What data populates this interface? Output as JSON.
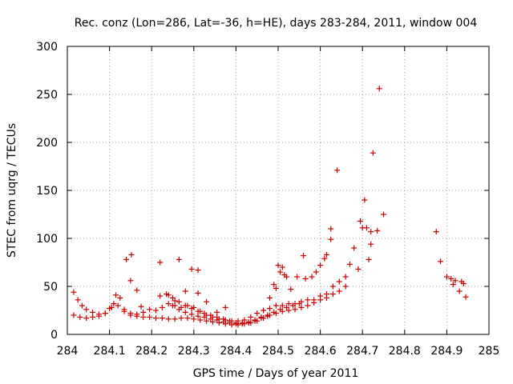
{
  "chart_data": {
    "type": "scatter",
    "title": "Rec. conz (Lon=286, Lat=-36, h=HE), days 283-284, 2011, window 004",
    "xlabel": "GPS time / Days of year 2011",
    "ylabel": "STEC from uqrg / TECUs",
    "xlim": [
      284,
      285
    ],
    "ylim": [
      0,
      300
    ],
    "xticks": [
      "284",
      "284.1",
      "284.2",
      "284.3",
      "284.4",
      "284.5",
      "284.6",
      "284.7",
      "284.8",
      "284.9",
      "285"
    ],
    "yticks": [
      "0",
      "50",
      "100",
      "150",
      "200",
      "250",
      "300"
    ],
    "grid": true,
    "marker": "+",
    "color": "#cc0000",
    "series": [
      {
        "points": [
          [
            284.015,
            44
          ],
          [
            284.025,
            36
          ],
          [
            284.035,
            30
          ],
          [
            284.045,
            26
          ],
          [
            284.06,
            23
          ],
          [
            284.075,
            21
          ],
          [
            284.09,
            22
          ],
          [
            284.1,
            27
          ],
          [
            284.11,
            32
          ],
          [
            284.115,
            41
          ],
          [
            284.125,
            38
          ],
          [
            284.135,
            26
          ],
          [
            284.15,
            22
          ],
          [
            284.165,
            21
          ],
          [
            284.18,
            23
          ],
          [
            284.195,
            26
          ],
          [
            284.21,
            25
          ],
          [
            284.225,
            28
          ],
          [
            284.24,
            32
          ],
          [
            284.255,
            30
          ],
          [
            284.27,
            28
          ],
          [
            284.285,
            30
          ],
          [
            284.3,
            28
          ],
          [
            284.315,
            24
          ],
          [
            284.33,
            20
          ],
          [
            284.345,
            18
          ],
          [
            284.36,
            16
          ],
          [
            284.375,
            15
          ],
          [
            284.39,
            14
          ],
          [
            284.405,
            14
          ],
          [
            284.42,
            15
          ],
          [
            284.435,
            18
          ],
          [
            284.45,
            22
          ],
          [
            284.465,
            25
          ],
          [
            284.48,
            27
          ],
          [
            284.495,
            30
          ],
          [
            284.51,
            30
          ],
          [
            284.525,
            32
          ],
          [
            284.54,
            32
          ],
          [
            284.555,
            34
          ],
          [
            284.57,
            36
          ],
          [
            284.585,
            36
          ],
          [
            284.6,
            40
          ],
          [
            284.615,
            42
          ],
          [
            284.63,
            50
          ],
          [
            284.645,
            55
          ],
          [
            284.66,
            60
          ],
          [
            284.015,
            20
          ],
          [
            284.03,
            18
          ],
          [
            284.045,
            17
          ],
          [
            284.06,
            18
          ],
          [
            284.075,
            19
          ],
          [
            284.09,
            22
          ],
          [
            284.105,
            28
          ],
          [
            284.12,
            30
          ],
          [
            284.135,
            24
          ],
          [
            284.15,
            20
          ],
          [
            284.165,
            19
          ],
          [
            284.18,
            18
          ],
          [
            284.195,
            18
          ],
          [
            284.21,
            17
          ],
          [
            284.225,
            17
          ],
          [
            284.24,
            16
          ],
          [
            284.255,
            16
          ],
          [
            284.27,
            17
          ],
          [
            284.285,
            17
          ],
          [
            284.3,
            16
          ],
          [
            284.315,
            15
          ],
          [
            284.33,
            14
          ],
          [
            284.345,
            13
          ],
          [
            284.36,
            12
          ],
          [
            284.375,
            11
          ],
          [
            284.39,
            10
          ],
          [
            284.405,
            10
          ],
          [
            284.42,
            11
          ],
          [
            284.435,
            12
          ],
          [
            284.45,
            14
          ],
          [
            284.465,
            17
          ],
          [
            284.48,
            20
          ],
          [
            284.495,
            22
          ],
          [
            284.51,
            24
          ],
          [
            284.525,
            25
          ],
          [
            284.54,
            26
          ],
          [
            284.555,
            28
          ],
          [
            284.57,
            30
          ],
          [
            284.585,
            33
          ],
          [
            284.6,
            36
          ],
          [
            284.615,
            38
          ],
          [
            284.63,
            42
          ],
          [
            284.645,
            45
          ],
          [
            284.66,
            50
          ],
          [
            284.22,
            40
          ],
          [
            284.235,
            42
          ],
          [
            284.25,
            38
          ],
          [
            284.265,
            34
          ],
          [
            284.28,
            30
          ],
          [
            284.295,
            27
          ],
          [
            284.31,
            24
          ],
          [
            284.325,
            22
          ],
          [
            284.34,
            20
          ],
          [
            284.355,
            18
          ],
          [
            284.37,
            16
          ],
          [
            284.385,
            14
          ],
          [
            284.4,
            12
          ],
          [
            284.415,
            12
          ],
          [
            284.43,
            13
          ],
          [
            284.445,
            15
          ],
          [
            284.46,
            18
          ],
          [
            284.475,
            20
          ],
          [
            284.49,
            23
          ],
          [
            284.505,
            26
          ],
          [
            284.52,
            28
          ],
          [
            284.535,
            30
          ],
          [
            284.55,
            32
          ],
          [
            284.25,
            30
          ],
          [
            284.265,
            26
          ],
          [
            284.28,
            23
          ],
          [
            284.295,
            21
          ],
          [
            284.31,
            19
          ],
          [
            284.325,
            18
          ],
          [
            284.34,
            16
          ],
          [
            284.355,
            15
          ],
          [
            284.37,
            13
          ],
          [
            284.385,
            12
          ],
          [
            284.4,
            11
          ],
          [
            284.415,
            11
          ],
          [
            284.43,
            12
          ],
          [
            284.445,
            14
          ],
          [
            284.46,
            17
          ],
          [
            284.475,
            19
          ],
          [
            284.14,
            78
          ],
          [
            284.152,
            83
          ],
          [
            284.15,
            56
          ],
          [
            284.165,
            46
          ],
          [
            284.175,
            29
          ],
          [
            284.22,
            75
          ],
          [
            284.24,
            41
          ],
          [
            284.255,
            35
          ],
          [
            284.265,
            78
          ],
          [
            284.28,
            45
          ],
          [
            284.295,
            68
          ],
          [
            284.31,
            67
          ],
          [
            284.31,
            43
          ],
          [
            284.33,
            34
          ],
          [
            284.355,
            23
          ],
          [
            284.375,
            28
          ],
          [
            284.48,
            38
          ],
          [
            284.49,
            52
          ],
          [
            284.495,
            48
          ],
          [
            284.5,
            72
          ],
          [
            284.505,
            65
          ],
          [
            284.51,
            70
          ],
          [
            284.515,
            62
          ],
          [
            284.52,
            60
          ],
          [
            284.53,
            47
          ],
          [
            284.545,
            60
          ],
          [
            284.56,
            82
          ],
          [
            284.565,
            58
          ],
          [
            284.58,
            60
          ],
          [
            284.59,
            65
          ],
          [
            284.6,
            72
          ],
          [
            284.61,
            79
          ],
          [
            284.615,
            83
          ],
          [
            284.625,
            110
          ],
          [
            284.625,
            99
          ],
          [
            284.64,
            171
          ],
          [
            284.67,
            73
          ],
          [
            284.68,
            90
          ],
          [
            284.69,
            68
          ],
          [
            284.695,
            118
          ],
          [
            284.7,
            111
          ],
          [
            284.705,
            140
          ],
          [
            284.71,
            111
          ],
          [
            284.715,
            78
          ],
          [
            284.72,
            94
          ],
          [
            284.72,
            107
          ],
          [
            284.725,
            189
          ],
          [
            284.735,
            108
          ],
          [
            284.74,
            256
          ],
          [
            284.75,
            125
          ],
          [
            284.875,
            107
          ],
          [
            284.885,
            76
          ],
          [
            284.9,
            60
          ],
          [
            284.91,
            58
          ],
          [
            284.915,
            52
          ],
          [
            284.92,
            56
          ],
          [
            284.93,
            45
          ],
          [
            284.935,
            55
          ],
          [
            284.94,
            53
          ],
          [
            284.945,
            39
          ]
        ]
      }
    ]
  }
}
